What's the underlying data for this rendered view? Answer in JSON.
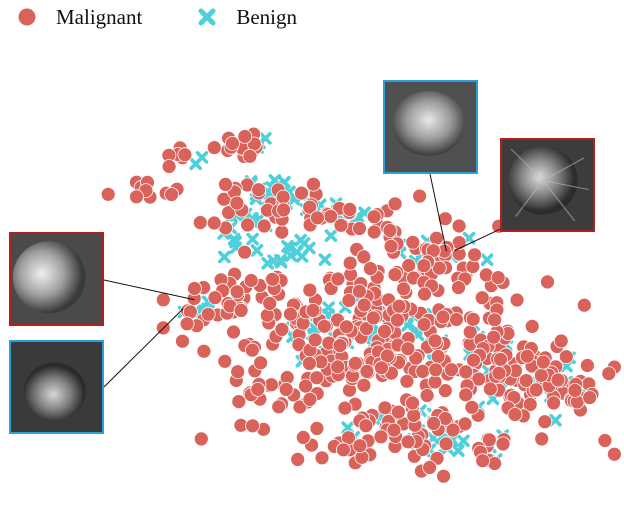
{
  "chart_data": {
    "type": "scatter",
    "title": "",
    "xlabel": "",
    "ylabel": "",
    "grid": false,
    "axes_visible": false,
    "xlim": [
      0,
      100
    ],
    "ylim": [
      0,
      100
    ],
    "legend": {
      "placement": "top-left",
      "entries": [
        {
          "name": "Malignant",
          "marker": "circle",
          "color": "#d9625a"
        },
        {
          "name": "Benign",
          "marker": "x",
          "color": "#4fcfd9"
        }
      ]
    },
    "series": [
      {
        "name": "Malignant",
        "marker": "circle",
        "color": "#d9625a",
        "clusters": [
          {
            "center": [
              32,
              81
            ],
            "spread": [
              2.5,
              1.5
            ],
            "count": 14
          },
          {
            "center": [
              21,
              79
            ],
            "spread": [
              1.5,
              1
            ],
            "count": 5
          },
          {
            "center": [
              15,
              70
            ],
            "spread": [
              3,
              1.5
            ],
            "count": 9
          },
          {
            "center": [
              34,
              68
            ],
            "spread": [
              6,
              4
            ],
            "count": 35
          },
          {
            "center": [
              52,
              64
            ],
            "spread": [
              6,
              3
            ],
            "count": 25
          },
          {
            "center": [
              66,
              56
            ],
            "spread": [
              6,
              4
            ],
            "count": 35
          },
          {
            "center": [
              33,
              46
            ],
            "spread": [
              6,
              4
            ],
            "count": 35
          },
          {
            "center": [
              58,
              42
            ],
            "spread": [
              14,
              7
            ],
            "count": 160
          },
          {
            "center": [
              50,
              30
            ],
            "spread": [
              10,
              5
            ],
            "count": 60
          },
          {
            "center": [
              78,
              30
            ],
            "spread": [
              12,
              6
            ],
            "count": 90
          },
          {
            "center": [
              63,
              14
            ],
            "spread": [
              13,
              4
            ],
            "count": 70
          },
          {
            "center": [
              88,
              26
            ],
            "spread": [
              6,
              4
            ],
            "count": 25
          },
          {
            "center": [
              35,
              30
            ],
            "spread": [
              3,
              4
            ],
            "count": 12
          },
          {
            "center": [
              62,
              18
            ],
            "spread": [
              4,
              3
            ],
            "count": 16
          }
        ]
      },
      {
        "name": "Benign",
        "marker": "x",
        "color": "#4fcfd9",
        "clusters": [
          {
            "center": [
              36,
              82
            ],
            "spread": [
              2,
              1
            ],
            "count": 5
          },
          {
            "center": [
              25,
              78
            ],
            "spread": [
              1,
              0.8
            ],
            "count": 2
          },
          {
            "center": [
              38,
              70
            ],
            "spread": [
              3,
              1.5
            ],
            "count": 20
          },
          {
            "center": [
              48,
              66
            ],
            "spread": [
              3,
              1
            ],
            "count": 10
          },
          {
            "center": [
              33,
              63
            ],
            "spread": [
              3,
              2
            ],
            "count": 12
          },
          {
            "center": [
              40,
              55
            ],
            "spread": [
              6,
              2
            ],
            "count": 18
          },
          {
            "center": [
              67,
              57
            ],
            "spread": [
              4,
              2
            ],
            "count": 12
          },
          {
            "center": [
              25,
              44
            ],
            "spread": [
              2,
              1.5
            ],
            "count": 8
          },
          {
            "center": [
              54,
              39
            ],
            "spread": [
              7,
              3
            ],
            "count": 50
          },
          {
            "center": [
              70,
              37
            ],
            "spread": [
              6,
              3
            ],
            "count": 20
          },
          {
            "center": [
              85,
              27
            ],
            "spread": [
              7,
              3
            ],
            "count": 20
          },
          {
            "center": [
              66,
              15
            ],
            "spread": [
              10,
              3
            ],
            "count": 30
          }
        ]
      }
    ],
    "annotations": [
      {
        "class": "Malignant",
        "data_point": [
          70.5,
          56.7
        ]
      },
      {
        "class": "Benign",
        "data_point": [
          69,
          56.5
        ]
      },
      {
        "class": "Malignant",
        "data_point": [
          24,
          45.5
        ]
      },
      {
        "class": "Benign",
        "data_point": [
          22,
          43.5
        ]
      }
    ]
  }
}
